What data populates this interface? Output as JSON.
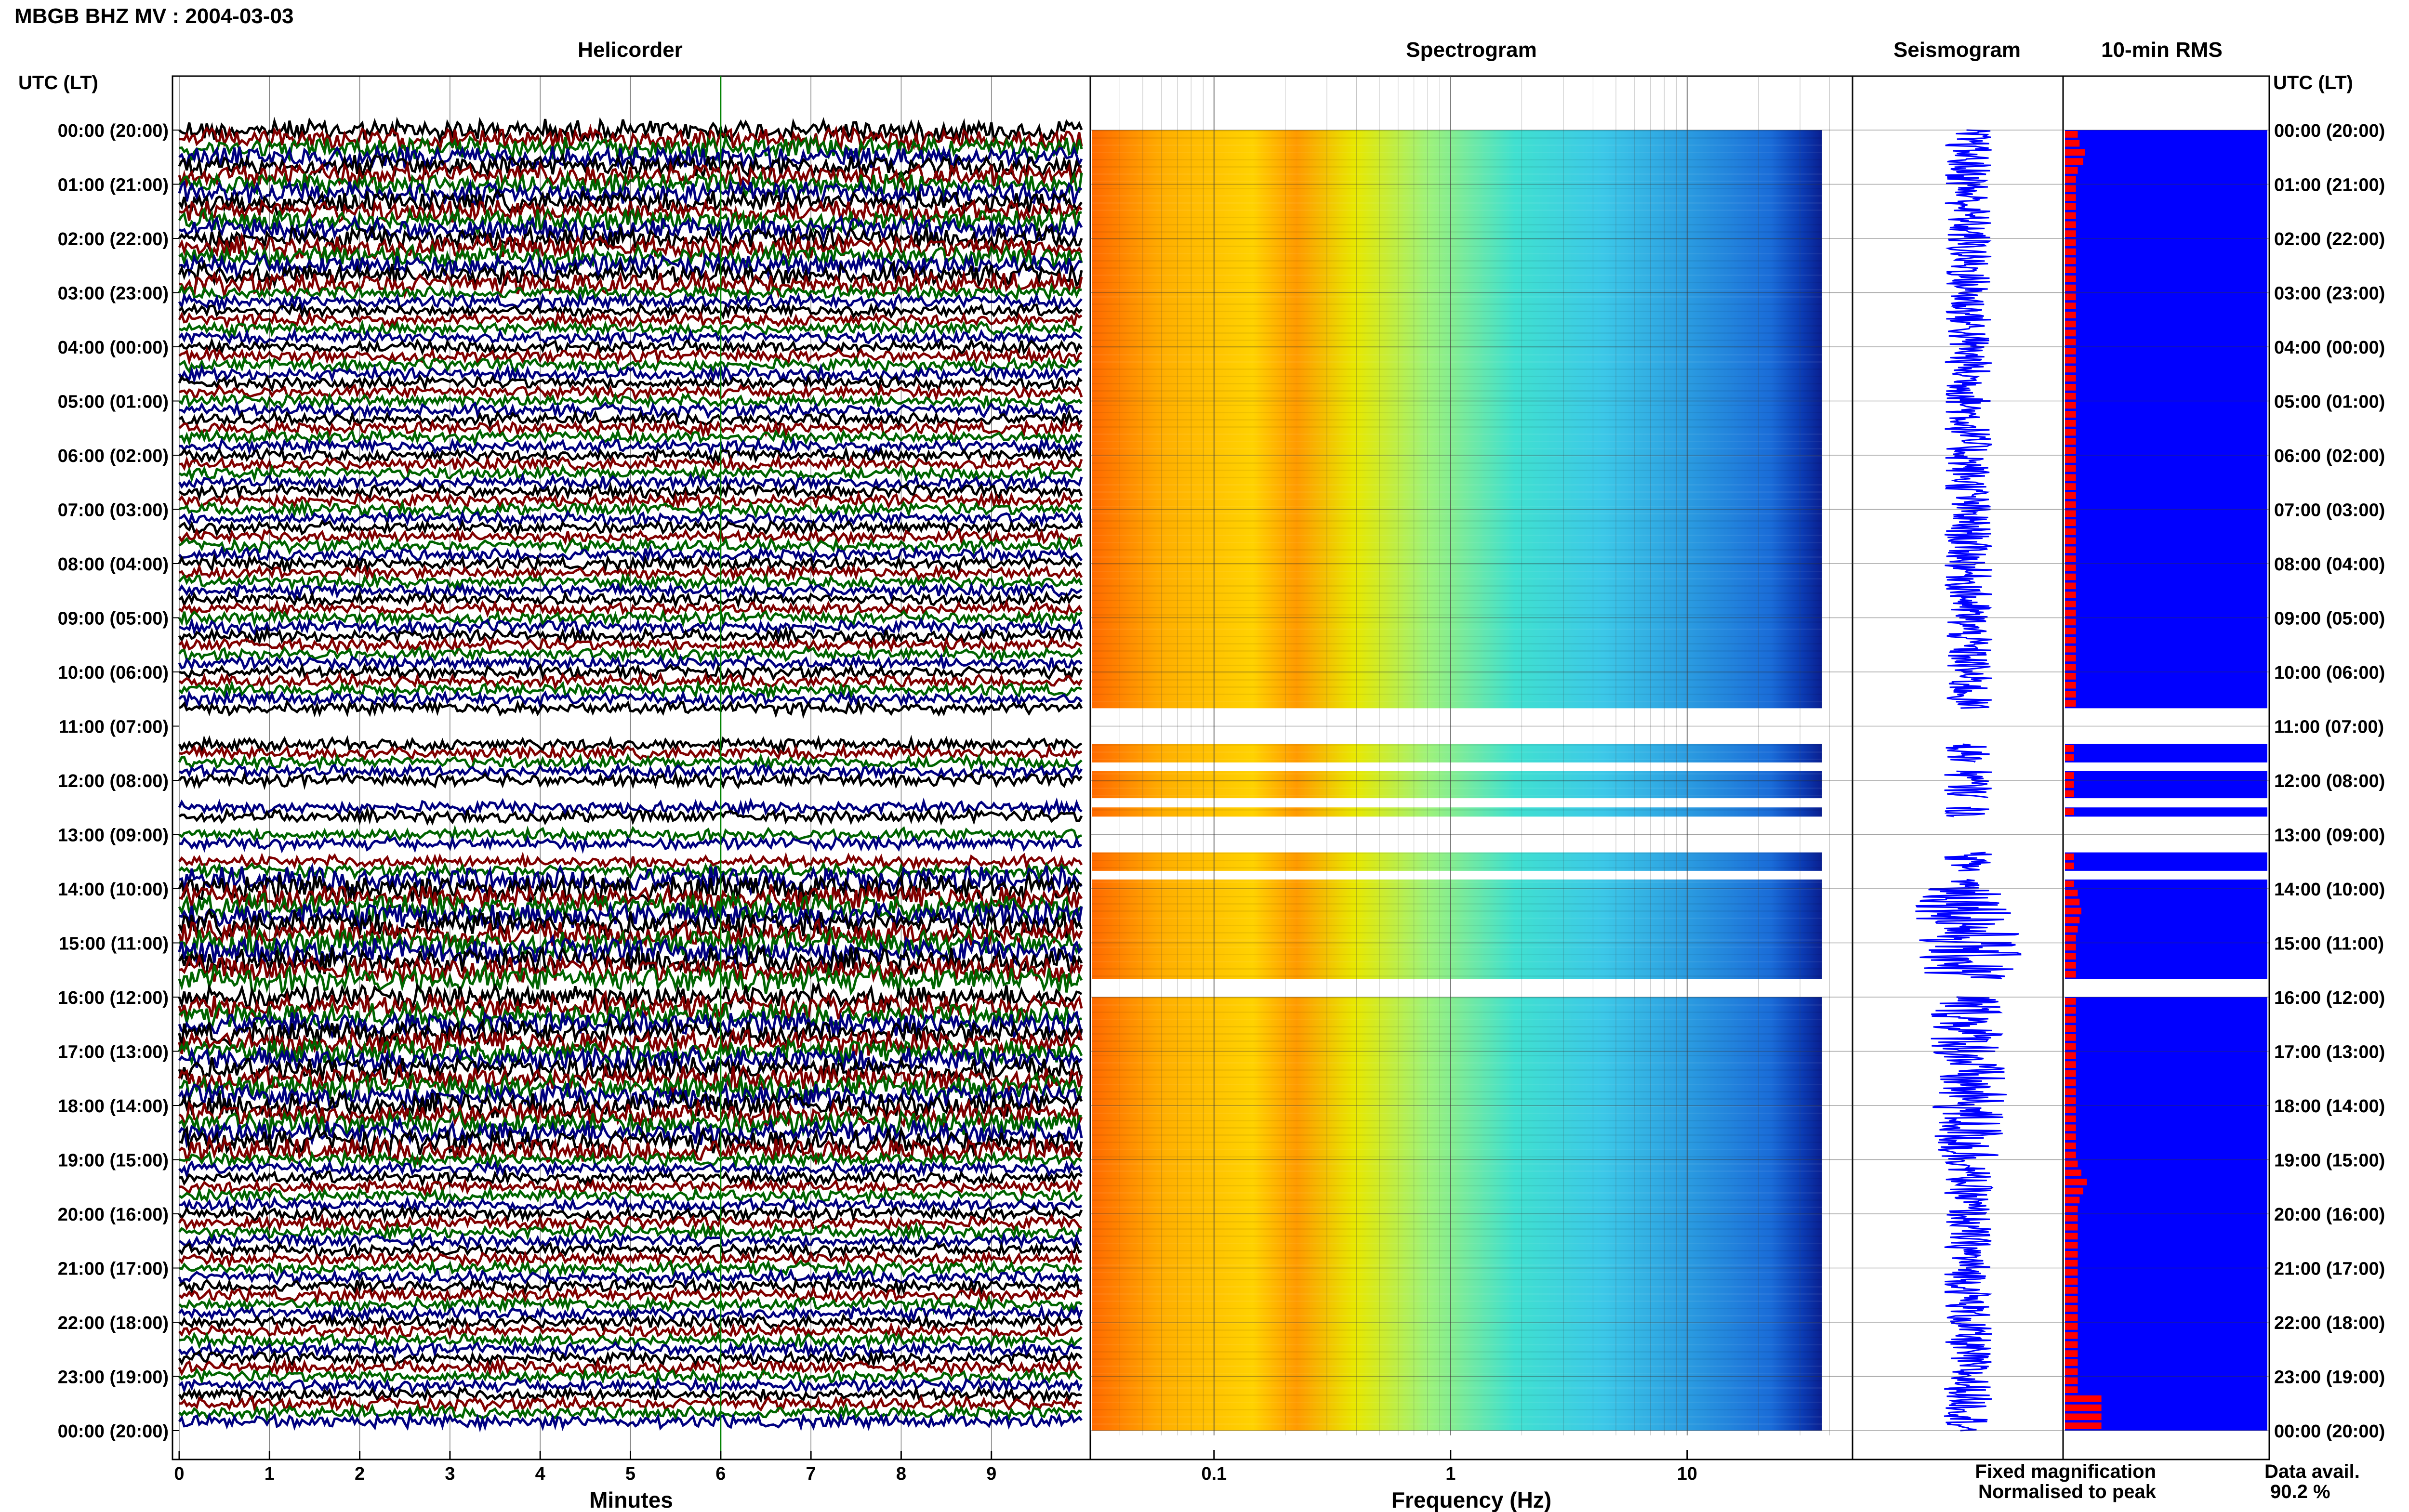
{
  "header": {
    "title": "MBGB BHZ MV : 2004-03-03"
  },
  "panels": {
    "helicorder": "Helicorder",
    "spectrogram": "Spectrogram",
    "seismogram": "Seismogram",
    "rms": "10-min RMS"
  },
  "axis_labels": {
    "time_header_left": "UTC (LT)",
    "time_header_right": "UTC (LT)",
    "minutes": "Minutes",
    "frequency": "Frequency (Hz)"
  },
  "legend": {
    "fixed": "Fixed magnification",
    "normalised": "Normalised to peak"
  },
  "data_avail": {
    "label": "Data avail.",
    "value": "90.2 %"
  },
  "colors": {
    "trace_cycle": [
      "#000000",
      "#800000",
      "#006400",
      "#000080"
    ],
    "seismogram": "#0000ff",
    "rms_fixed": "#0000ff",
    "rms_normalised": "#ff0000",
    "legend_fixed": "#0000ff",
    "legend_normalised": "#ff0000"
  },
  "chart_data": [
    {
      "type": "line",
      "name": "helicorder",
      "x_axis": {
        "label": "Minutes",
        "range": [
          0,
          10
        ],
        "ticks": [
          0,
          1,
          2,
          3,
          4,
          5,
          6,
          7,
          8,
          9
        ]
      },
      "y_axis": {
        "label": "UTC (LT)",
        "range_hours": [
          0,
          24
        ],
        "ticks": [
          "00:00 (20:00)",
          "01:00 (21:00)",
          "02:00 (22:00)",
          "03:00 (23:00)",
          "04:00 (00:00)",
          "05:00 (01:00)",
          "06:00 (02:00)",
          "07:00 (03:00)",
          "08:00 (04:00)",
          "09:00 (05:00)",
          "10:00 (06:00)",
          "11:00 (07:00)",
          "12:00 (08:00)",
          "13:00 (09:00)",
          "14:00 (10:00)",
          "15:00 (11:00)",
          "16:00 (12:00)",
          "17:00 (13:00)",
          "18:00 (14:00)",
          "19:00 (15:00)",
          "20:00 (16:00)",
          "21:00 (17:00)",
          "22:00 (18:00)",
          "23:00 (19:00)",
          "00:00 (20:00)"
        ]
      },
      "data_gaps_hours": [
        [
          10.67,
          11.2
        ],
        [
          11.7,
          11.83
        ],
        [
          12.1,
          12.45
        ],
        [
          12.67,
          13.0
        ],
        [
          13.33,
          13.5
        ],
        [
          13.67,
          13.83
        ],
        [
          15.67,
          16.0
        ]
      ]
    },
    {
      "type": "heatmap",
      "name": "spectrogram",
      "x_axis": {
        "label": "Frequency (Hz)",
        "scale": "log",
        "range": [
          0.03,
          50
        ],
        "ticks": [
          0.1,
          1,
          10
        ]
      },
      "y_axis": {
        "range_hours": [
          0,
          24
        ]
      },
      "data_gaps_hours": [
        [
          10.67,
          11.33
        ],
        [
          11.67,
          11.83
        ],
        [
          12.33,
          12.5
        ],
        [
          12.67,
          13.33
        ],
        [
          13.67,
          13.83
        ],
        [
          15.67,
          16.0
        ]
      ]
    },
    {
      "type": "line",
      "name": "seismogram",
      "y_axis": {
        "range_hours": [
          0,
          24
        ]
      },
      "data_gaps_hours": [
        [
          10.67,
          11.33
        ],
        [
          11.67,
          11.83
        ],
        [
          12.33,
          12.5
        ],
        [
          12.67,
          13.33
        ],
        [
          13.67,
          13.83
        ],
        [
          15.67,
          16.0
        ]
      ]
    },
    {
      "type": "bar",
      "name": "10-min RMS",
      "orientation": "horizontal",
      "bin_minutes": 10,
      "y_axis": {
        "range_hours": [
          0,
          24
        ]
      },
      "series": [
        {
          "name": "Fixed magnification",
          "values": [
            1
          ]
        },
        {
          "name": "Normalised to peak",
          "values": [
            0.35,
            0.4,
            0.55,
            0.5,
            0.35,
            0.3,
            0.3,
            0.3,
            0.3,
            0.3,
            0.3,
            0.3,
            0.3,
            0.3,
            0.3,
            0.3,
            0.3,
            0.3,
            0.3,
            0.3,
            0.3,
            0.3,
            0.3,
            0.3,
            0.3,
            0.3,
            0.3,
            0.3,
            0.3,
            0.3,
            0.3,
            0.3,
            0.3,
            0.3,
            0.3,
            0.3,
            0.3,
            0.3,
            0.3,
            0.3,
            0.3,
            0.3,
            0.3,
            0.3,
            0.3,
            0.3,
            0.3,
            0.3,
            0.3,
            0.3,
            0.3,
            0.3,
            0.3,
            0.3,
            0.3,
            0.3,
            0.3,
            0.3,
            0.3,
            0.3,
            0.3,
            0.3,
            0.3,
            0.3,
            0.35,
            0.3,
            0.3,
            0.25,
            0.25,
            0.25,
            0.25,
            0.25,
            0.25,
            0.25,
            0.25,
            0.25,
            0.25,
            0.25,
            0.25,
            0.25,
            0.25,
            0.25,
            0.25,
            0.25,
            0.35,
            0.4,
            0.45,
            0.4,
            0.35,
            0.3,
            0.3,
            0.3,
            0.3,
            0.3,
            0.3,
            0.3,
            0.3,
            0.3,
            0.3,
            0.3,
            0.3,
            0.3,
            0.3,
            0.3,
            0.3,
            0.3,
            0.3,
            0.3,
            0.3,
            0.3,
            0.3,
            0.3,
            0.3,
            0.3,
            0.35,
            0.45,
            0.6,
            0.5,
            0.4,
            0.35,
            0.35,
            0.35,
            0.35,
            0.35,
            0.35,
            0.35,
            0.35,
            0.35,
            0.35,
            0.35,
            0.35,
            0.35,
            0.35,
            0.35,
            0.35,
            0.35,
            0.35,
            0.35,
            0.35,
            0.35,
            1.0
          ]
        }
      ],
      "data_gaps_hours": [
        [
          10.67,
          11.33
        ],
        [
          11.67,
          11.83
        ],
        [
          12.33,
          12.5
        ],
        [
          12.67,
          13.33
        ],
        [
          13.67,
          13.83
        ],
        [
          15.67,
          16.0
        ]
      ]
    }
  ]
}
